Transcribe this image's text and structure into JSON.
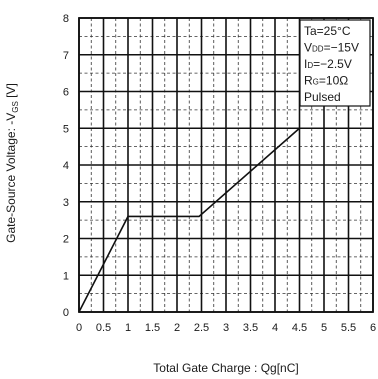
{
  "chart_data": {
    "type": "line",
    "xlabel": "Total Gate Charge : Qg[nC]",
    "ylabel": {
      "main": "Gate-Source Voltage: -V",
      "sub": "GS",
      "unit": " [V]"
    },
    "xlim": [
      0,
      6
    ],
    "ylim": [
      0,
      8
    ],
    "x_major_ticks": [
      0,
      0.5,
      1,
      1.5,
      2,
      2.5,
      3,
      3.5,
      4,
      4.5,
      5,
      5.5,
      6
    ],
    "x_tick_labels": [
      "0",
      "0.5",
      "1",
      "1.5",
      "2",
      "2.5",
      "3",
      "3.5",
      "4",
      "4.5",
      "5",
      "5.5",
      "6"
    ],
    "y_major_ticks": [
      0,
      1,
      2,
      3,
      4,
      5,
      6,
      7,
      8
    ],
    "y_tick_labels": [
      "0",
      "1",
      "2",
      "3",
      "4",
      "5",
      "6",
      "7",
      "8"
    ],
    "grid": {
      "major": true,
      "minor_dashed": true
    },
    "legend_placement": "top-right",
    "series": [
      {
        "x": [
          0,
          1,
          2.45,
          4.5
        ],
        "y": [
          0,
          2.6,
          2.6,
          5.0
        ]
      }
    ],
    "conditions": [
      {
        "main": "Ta=25°C",
        "sub": "",
        "rest": ""
      },
      {
        "main": "V",
        "sub": "DD",
        "rest": "=−15V"
      },
      {
        "main": "I",
        "sub": "D",
        "rest": "=−2.5V"
      },
      {
        "main": "R",
        "sub": "G",
        "rest": "=10Ω"
      },
      {
        "main": "Pulsed",
        "sub": "",
        "rest": ""
      }
    ]
  }
}
